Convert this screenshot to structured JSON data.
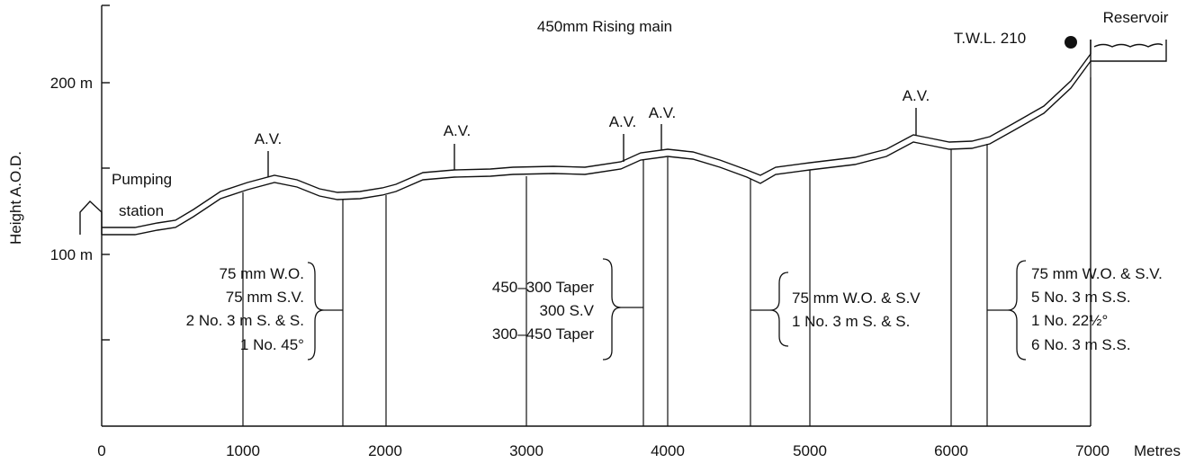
{
  "title": "450mm Rising main",
  "axes": {
    "ylabel": "Height A.O.D.",
    "xunit": "Metres",
    "xticks": [
      "0",
      "1000",
      "2000",
      "3000",
      "4000",
      "5000",
      "6000",
      "7000"
    ],
    "yticks": [
      "200 m",
      "100 m"
    ]
  },
  "labels": {
    "pumping_station_line1": "Pumping",
    "pumping_station_line2": "station",
    "reservoir": "Reservoir",
    "twl": "T.W.L. 210",
    "air_valve": "A.V."
  },
  "fittings": {
    "group1": [
      "75 mm W.O.",
      "75 mm S.V.",
      "2 No. 3 m S. & S.",
      "1 No. 45°"
    ],
    "group2": [
      "450–300 Taper",
      "300 S.V",
      "300–450 Taper"
    ],
    "group3": [
      "75 mm W.O. & S.V",
      "1 No. 3 m S. & S."
    ],
    "group4": [
      "75 mm W.O. & S.V.",
      "5 No. 3 m S.S.",
      "1 No. 22½°",
      "6 No. 3 m S.S."
    ]
  }
}
